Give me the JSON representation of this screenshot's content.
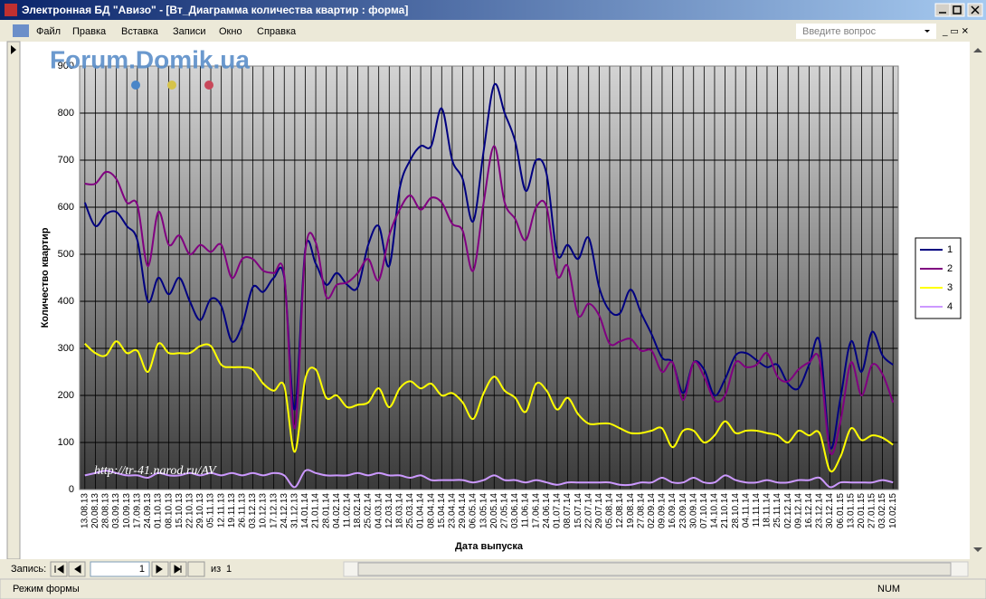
{
  "window": {
    "title": "Электронная БД \"Авизо\" - [Вт_Диаграмма количества квартир : форма]",
    "menu": [
      "Файл",
      "Правка",
      "Вставка",
      "Записи",
      "Окно",
      "Справка"
    ],
    "help_placeholder": "Введите вопрос"
  },
  "watermarks": [
    "Forum.Domik.ua",
    "http://tr-41.narod.ru/AV"
  ],
  "chart_data": {
    "type": "line",
    "smooth": true,
    "grid": true,
    "legend": "right",
    "y_label": "Количество квартир",
    "x_label": "Дата выпуска",
    "ylim": [
      0,
      900
    ],
    "yticks": [
      0,
      100,
      200,
      300,
      400,
      500,
      600,
      700,
      800,
      900
    ],
    "categories": [
      "13.08.13",
      "20.08.13",
      "28.08.13",
      "03.09.13",
      "10.09.13",
      "17.09.13",
      "24.09.13",
      "01.10.13",
      "08.10.13",
      "15.10.13",
      "22.10.13",
      "29.10.13",
      "05.11.13",
      "12.11.13",
      "19.11.13",
      "26.11.13",
      "03.12.13",
      "10.12.13",
      "17.12.13",
      "24.12.13",
      "31.12.13",
      "14.01.14",
      "21.01.14",
      "28.01.14",
      "04.02.14",
      "11.02.14",
      "18.02.14",
      "25.02.14",
      "04.03.14",
      "12.03.14",
      "18.03.14",
      "25.03.14",
      "01.04.14",
      "08.04.14",
      "15.04.14",
      "23.04.14",
      "29.04.14",
      "06.05.14",
      "13.05.14",
      "20.05.14",
      "27.05.14",
      "03.06.14",
      "11.06.14",
      "17.06.14",
      "24.06.14",
      "01.07.14",
      "08.07.14",
      "15.07.14",
      "22.07.14",
      "29.07.14",
      "05.08.14",
      "12.08.14",
      "19.08.14",
      "27.08.14",
      "02.09.14",
      "09.09.14",
      "16.09.14",
      "23.09.14",
      "30.09.14",
      "07.10.14",
      "14.10.14",
      "21.10.14",
      "28.10.14",
      "04.11.14",
      "11.11.14",
      "18.11.14",
      "25.11.14",
      "02.12.14",
      "09.12.14",
      "16.12.14",
      "23.12.14",
      "30.12.14",
      "06.01.15",
      "13.01.15",
      "20.01.15",
      "27.01.15",
      "03.02.15",
      "10.02.15"
    ],
    "series": [
      {
        "name": "1",
        "color": "#000080",
        "values": [
          610,
          560,
          585,
          590,
          560,
          530,
          400,
          450,
          415,
          450,
          400,
          360,
          405,
          390,
          315,
          350,
          430,
          420,
          450,
          450,
          170,
          510,
          480,
          435,
          460,
          435,
          430,
          520,
          560,
          475,
          640,
          700,
          730,
          730,
          810,
          700,
          660,
          570,
          720,
          860,
          800,
          740,
          635,
          700,
          670,
          500,
          520,
          490,
          535,
          430,
          380,
          375,
          425,
          375,
          330,
          280,
          270,
          205,
          270,
          255,
          200,
          235,
          285,
          290,
          275,
          260,
          265,
          225,
          215,
          265,
          315,
          90,
          195,
          315,
          250,
          335,
          285,
          265
        ]
      },
      {
        "name": "2",
        "color": "#800080",
        "values": [
          650,
          650,
          675,
          660,
          610,
          605,
          475,
          590,
          520,
          540,
          500,
          520,
          505,
          520,
          450,
          490,
          490,
          465,
          460,
          455,
          130,
          505,
          525,
          410,
          435,
          440,
          460,
          490,
          445,
          540,
          595,
          625,
          595,
          620,
          610,
          565,
          550,
          465,
          610,
          730,
          610,
          575,
          530,
          600,
          600,
          455,
          475,
          370,
          395,
          370,
          310,
          315,
          320,
          295,
          295,
          250,
          270,
          190,
          270,
          240,
          190,
          200,
          270,
          260,
          265,
          290,
          240,
          230,
          255,
          270,
          275,
          80,
          145,
          270,
          200,
          265,
          245,
          185
        ]
      },
      {
        "name": "3",
        "color": "#ffff00",
        "values": [
          310,
          290,
          285,
          315,
          290,
          295,
          250,
          310,
          290,
          290,
          290,
          305,
          305,
          265,
          260,
          260,
          255,
          225,
          210,
          220,
          80,
          235,
          255,
          195,
          200,
          175,
          180,
          185,
          215,
          175,
          215,
          230,
          215,
          225,
          200,
          205,
          185,
          150,
          205,
          240,
          210,
          195,
          165,
          225,
          210,
          170,
          195,
          160,
          140,
          140,
          140,
          130,
          120,
          120,
          125,
          130,
          90,
          125,
          125,
          100,
          115,
          145,
          120,
          125,
          125,
          120,
          115,
          100,
          125,
          115,
          120,
          40,
          70,
          130,
          105,
          115,
          110,
          95
        ]
      },
      {
        "name": "4",
        "color": "#cc99ff",
        "values": [
          30,
          35,
          40,
          35,
          30,
          30,
          25,
          35,
          30,
          30,
          35,
          30,
          35,
          30,
          35,
          30,
          35,
          30,
          35,
          30,
          5,
          40,
          35,
          30,
          30,
          30,
          35,
          30,
          35,
          30,
          30,
          25,
          30,
          20,
          20,
          20,
          20,
          15,
          20,
          30,
          20,
          20,
          15,
          20,
          15,
          10,
          15,
          15,
          15,
          15,
          15,
          10,
          10,
          15,
          15,
          25,
          15,
          15,
          25,
          15,
          15,
          30,
          20,
          15,
          15,
          20,
          15,
          15,
          20,
          20,
          25,
          5,
          15,
          15,
          15,
          15,
          20,
          15
        ]
      }
    ]
  },
  "navigation": {
    "label": "Запись:",
    "current": 1,
    "of_label": "из",
    "total": 1
  },
  "status": {
    "mode": "Режим формы",
    "indicator": "NUM"
  }
}
